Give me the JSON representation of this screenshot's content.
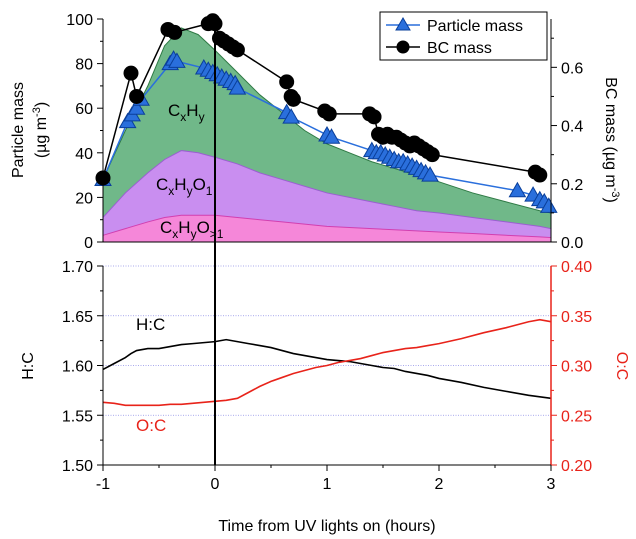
{
  "chart_data": [
    {
      "type": "area",
      "panel": "top",
      "xlim": [
        -1,
        3
      ],
      "ylabel": "Particle mass",
      "ylabel_unit": "(µg m",
      "ylabel_exp": "-3",
      "ylabel_close": ")",
      "y2label": "BC mass (µg m",
      "y2label_exp": "-3",
      "y2label_close": ")",
      "ylim": [
        0,
        100
      ],
      "y2lim": [
        0,
        0.766
      ],
      "yticks": [
        "0",
        "20",
        "40",
        "60",
        "80",
        "100"
      ],
      "yticks_values": [
        0,
        20,
        40,
        60,
        80,
        100
      ],
      "y2ticks": [
        "0.0",
        "0.2",
        "0.4",
        "0.6"
      ],
      "y2ticks_values": [
        0,
        0.2,
        0.4,
        0.6
      ],
      "legend_position": "top-right",
      "legend": [
        "Particle mass",
        "BC mass"
      ],
      "areas": [
        {
          "label_main": "C",
          "label_parts": [
            [
              "x",
              "sub"
            ],
            [
              "H",
              ""
            ],
            [
              "y",
              "sub"
            ]
          ],
          "color": "#70b889",
          "x": [
            -1,
            -0.8,
            -0.6,
            -0.45,
            -0.3,
            -0.15,
            0,
            0.2,
            0.4,
            0.6,
            0.8,
            1.0,
            1.2,
            1.4,
            1.6,
            1.8,
            2.0,
            2.3,
            2.6,
            2.9,
            3.0
          ],
          "y": [
            28,
            50,
            70,
            88,
            96,
            93,
            86,
            76,
            66,
            58,
            50,
            44,
            40,
            36,
            33,
            30,
            27,
            22,
            18,
            14,
            13
          ]
        },
        {
          "label_main": "C",
          "label_parts": [
            [
              "x",
              "sub"
            ],
            [
              "H",
              ""
            ],
            [
              "y",
              "sub"
            ],
            [
              "O",
              ""
            ],
            [
              "1",
              "sub"
            ]
          ],
          "color": "#c98ef0",
          "x": [
            -1,
            -0.8,
            -0.6,
            -0.45,
            -0.3,
            -0.15,
            0,
            0.2,
            0.4,
            0.6,
            0.8,
            1.0,
            1.2,
            1.4,
            1.6,
            1.8,
            2.0,
            2.3,
            2.6,
            2.9,
            3.0
          ],
          "y": [
            11,
            22,
            31,
            37,
            41,
            40,
            38,
            35,
            31,
            28,
            25,
            22,
            20,
            18,
            16,
            14,
            13,
            11,
            9,
            7,
            6
          ]
        },
        {
          "label_main": "C",
          "label_parts": [
            [
              "x",
              "sub"
            ],
            [
              "H",
              ""
            ],
            [
              "y",
              "sub"
            ],
            [
              "O",
              ""
            ],
            [
              ">1",
              "sub"
            ]
          ],
          "color": "#f587d9",
          "x": [
            -1,
            -0.8,
            -0.6,
            -0.45,
            -0.3,
            -0.15,
            0,
            0.2,
            0.4,
            0.6,
            0.8,
            1.0,
            1.2,
            1.4,
            1.6,
            1.8,
            2.0,
            2.3,
            2.6,
            2.9,
            3.0
          ],
          "y": [
            3,
            6,
            9,
            11,
            12,
            12,
            12,
            11,
            10,
            9,
            8,
            7,
            6.5,
            6,
            5.5,
            5,
            4.5,
            3.8,
            3,
            2.3,
            2
          ]
        }
      ],
      "series": [
        {
          "name": "Particle mass",
          "marker": "triangle",
          "color": "#2a6fdc",
          "axis": "left",
          "x": [
            -1,
            -0.78,
            -0.74,
            -0.7,
            -0.66,
            -0.4,
            -0.37,
            -0.34,
            -0.1,
            -0.06,
            -0.02,
            0.02,
            0.06,
            0.1,
            0.14,
            0.18,
            0.2,
            0.64,
            0.68,
            1.0,
            1.04,
            1.4,
            1.44,
            1.48,
            1.52,
            1.56,
            1.6,
            1.64,
            1.68,
            1.72,
            1.76,
            1.8,
            1.84,
            1.88,
            1.92,
            2.7,
            2.84,
            2.9,
            2.94,
            2.98
          ],
          "y": [
            28,
            54,
            57,
            60,
            64,
            80,
            82,
            81,
            78,
            77,
            76,
            75,
            74,
            73,
            72,
            71,
            69,
            58,
            56,
            48,
            47,
            41,
            40,
            40,
            39,
            38,
            37,
            36,
            36,
            35,
            34,
            33,
            32,
            31,
            30,
            23,
            21,
            19,
            18,
            16
          ]
        },
        {
          "name": "BC mass",
          "marker": "circle",
          "color": "#000000",
          "axis": "right",
          "x": [
            -1,
            -0.75,
            -0.7,
            -0.42,
            -0.36,
            -0.06,
            -0.02,
            0.0,
            0.04,
            0.08,
            0.12,
            0.16,
            0.2,
            0.64,
            0.68,
            0.7,
            0.98,
            1.02,
            1.38,
            1.42,
            1.46,
            1.5,
            1.54,
            1.58,
            1.62,
            1.66,
            1.7,
            1.74,
            1.78,
            1.82,
            1.86,
            1.9,
            1.94,
            2.86,
            2.9
          ],
          "y": [
            0.22,
            0.58,
            0.5,
            0.73,
            0.72,
            0.75,
            0.76,
            0.75,
            0.7,
            0.69,
            0.68,
            0.67,
            0.66,
            0.55,
            0.5,
            0.49,
            0.45,
            0.44,
            0.44,
            0.43,
            0.37,
            0.36,
            0.37,
            0.36,
            0.36,
            0.35,
            0.34,
            0.33,
            0.34,
            0.33,
            0.32,
            0.31,
            0.3,
            0.24,
            0.23
          ]
        }
      ]
    },
    {
      "type": "line",
      "panel": "bottom",
      "xlabel": "Time from UV lights on (hours)",
      "xlim": [
        -1,
        3
      ],
      "xticks": [
        "-1",
        "0",
        "1",
        "2",
        "3"
      ],
      "xticks_values": [
        -1,
        0,
        1,
        2,
        3
      ],
      "ylabel": "H:C",
      "y2label": "O:C",
      "ylim": [
        1.5,
        1.7
      ],
      "y2lim": [
        0.2,
        0.4
      ],
      "yticks": [
        "1.50",
        "1.55",
        "1.60",
        "1.65",
        "1.70"
      ],
      "yticks_values": [
        1.5,
        1.55,
        1.6,
        1.65,
        1.7
      ],
      "y2ticks": [
        "0.20",
        "0.25",
        "0.30",
        "0.35",
        "0.40"
      ],
      "y2ticks_values": [
        0.2,
        0.25,
        0.3,
        0.35,
        0.4
      ],
      "grid": true,
      "vline_x": 0,
      "series": [
        {
          "name": "H:C",
          "color": "#000000",
          "axis": "left",
          "x": [
            -1,
            -0.9,
            -0.8,
            -0.75,
            -0.7,
            -0.6,
            -0.5,
            -0.4,
            -0.3,
            -0.2,
            -0.1,
            0,
            0.1,
            0.2,
            0.3,
            0.4,
            0.5,
            0.6,
            0.7,
            0.8,
            0.9,
            1.0,
            1.1,
            1.2,
            1.3,
            1.4,
            1.5,
            1.6,
            1.7,
            1.8,
            1.9,
            2.0,
            2.2,
            2.4,
            2.6,
            2.8,
            3.0
          ],
          "y": [
            1.596,
            1.602,
            1.608,
            1.612,
            1.615,
            1.617,
            1.617,
            1.619,
            1.621,
            1.622,
            1.623,
            1.624,
            1.626,
            1.624,
            1.622,
            1.62,
            1.618,
            1.615,
            1.612,
            1.61,
            1.608,
            1.606,
            1.605,
            1.604,
            1.602,
            1.6,
            1.598,
            1.597,
            1.594,
            1.592,
            1.59,
            1.587,
            1.583,
            1.578,
            1.574,
            1.57,
            1.567
          ]
        },
        {
          "name": "O:C",
          "color": "#e8231a",
          "axis": "right",
          "x": [
            -1,
            -0.9,
            -0.8,
            -0.7,
            -0.6,
            -0.5,
            -0.4,
            -0.3,
            -0.2,
            -0.1,
            0,
            0.1,
            0.2,
            0.3,
            0.4,
            0.5,
            0.6,
            0.7,
            0.8,
            0.9,
            1.0,
            1.1,
            1.2,
            1.3,
            1.4,
            1.5,
            1.6,
            1.7,
            1.8,
            1.9,
            2.0,
            2.2,
            2.4,
            2.6,
            2.8,
            2.9,
            3.0
          ],
          "y": [
            0.263,
            0.262,
            0.26,
            0.26,
            0.26,
            0.26,
            0.261,
            0.261,
            0.262,
            0.263,
            0.264,
            0.265,
            0.267,
            0.273,
            0.279,
            0.284,
            0.288,
            0.292,
            0.295,
            0.298,
            0.3,
            0.303,
            0.305,
            0.307,
            0.31,
            0.313,
            0.315,
            0.317,
            0.318,
            0.32,
            0.322,
            0.327,
            0.333,
            0.338,
            0.344,
            0.346,
            0.344
          ]
        }
      ]
    }
  ]
}
